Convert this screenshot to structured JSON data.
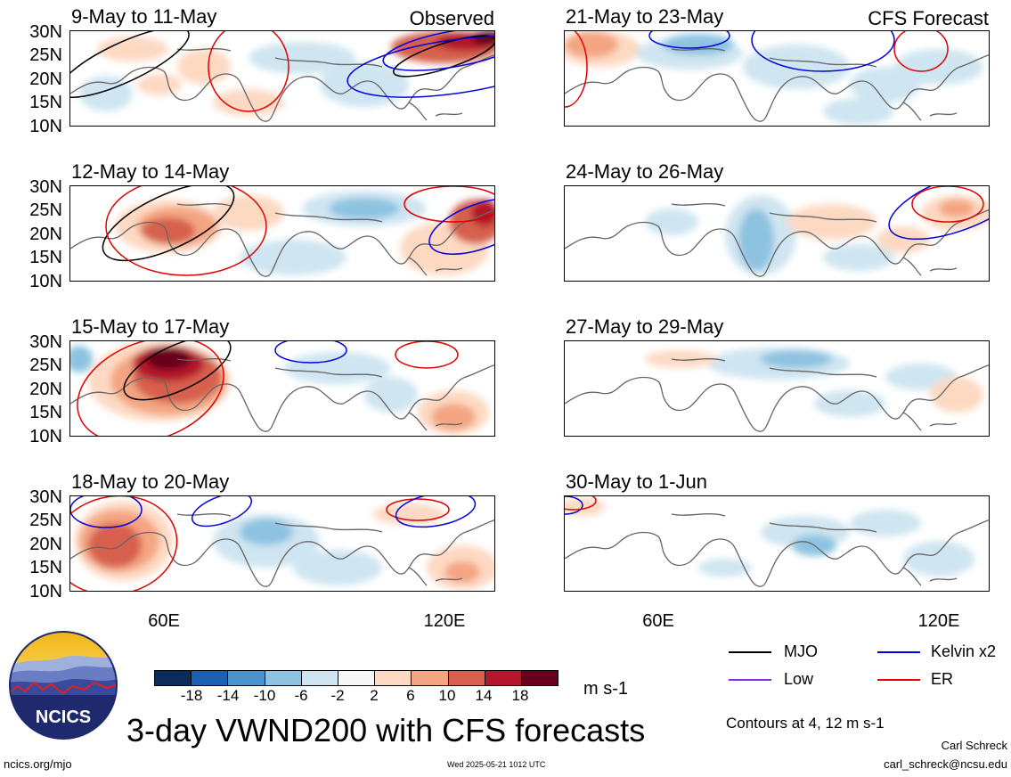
{
  "panels": [
    {
      "title": "9-May to 11-May",
      "label": "Observed"
    },
    {
      "title": "12-May to 14-May",
      "label": ""
    },
    {
      "title": "15-May to 17-May",
      "label": ""
    },
    {
      "title": "18-May to 20-May",
      "label": ""
    },
    {
      "title": "21-May to 23-May",
      "label": "CFS Forecast"
    },
    {
      "title": "24-May to 26-May",
      "label": ""
    },
    {
      "title": "27-May to 29-May",
      "label": ""
    },
    {
      "title": "30-May to 1-Jun",
      "label": ""
    }
  ],
  "lat_labels": [
    "30N",
    "25N",
    "20N",
    "15N",
    "10N"
  ],
  "lon_labels": [
    "60E",
    "120E"
  ],
  "colorbar": {
    "colors": [
      "#0b2b5a",
      "#1d5fb0",
      "#4a93cc",
      "#8dc3e1",
      "#cfe5f1",
      "#f7f7f7",
      "#fdd9c2",
      "#f4a582",
      "#d6604d",
      "#b2182b",
      "#67001f"
    ],
    "ticks": [
      "-18",
      "-14",
      "-10",
      "-6",
      "-2",
      "2",
      "6",
      "10",
      "14",
      "18"
    ],
    "unit": "m s-1"
  },
  "legend": {
    "items": [
      {
        "name": "MJO",
        "color": "#000000"
      },
      {
        "name": "Kelvin x2",
        "color": "#0000dd"
      },
      {
        "name": "Low",
        "color": "#8a2be2"
      },
      {
        "name": "ER",
        "color": "#e00000"
      }
    ],
    "contours": "Contours at 4, 12 m s-1"
  },
  "logo_text": "NCICS",
  "title": "3-day VWND200 with CFS forecasts",
  "footer": {
    "url": "ncics.org/mjo",
    "timestamp": "Wed 2025-05-21 1012 UTC",
    "author": "Carl Schreck",
    "email": "carl_schreck@ncsu.edu"
  }
}
